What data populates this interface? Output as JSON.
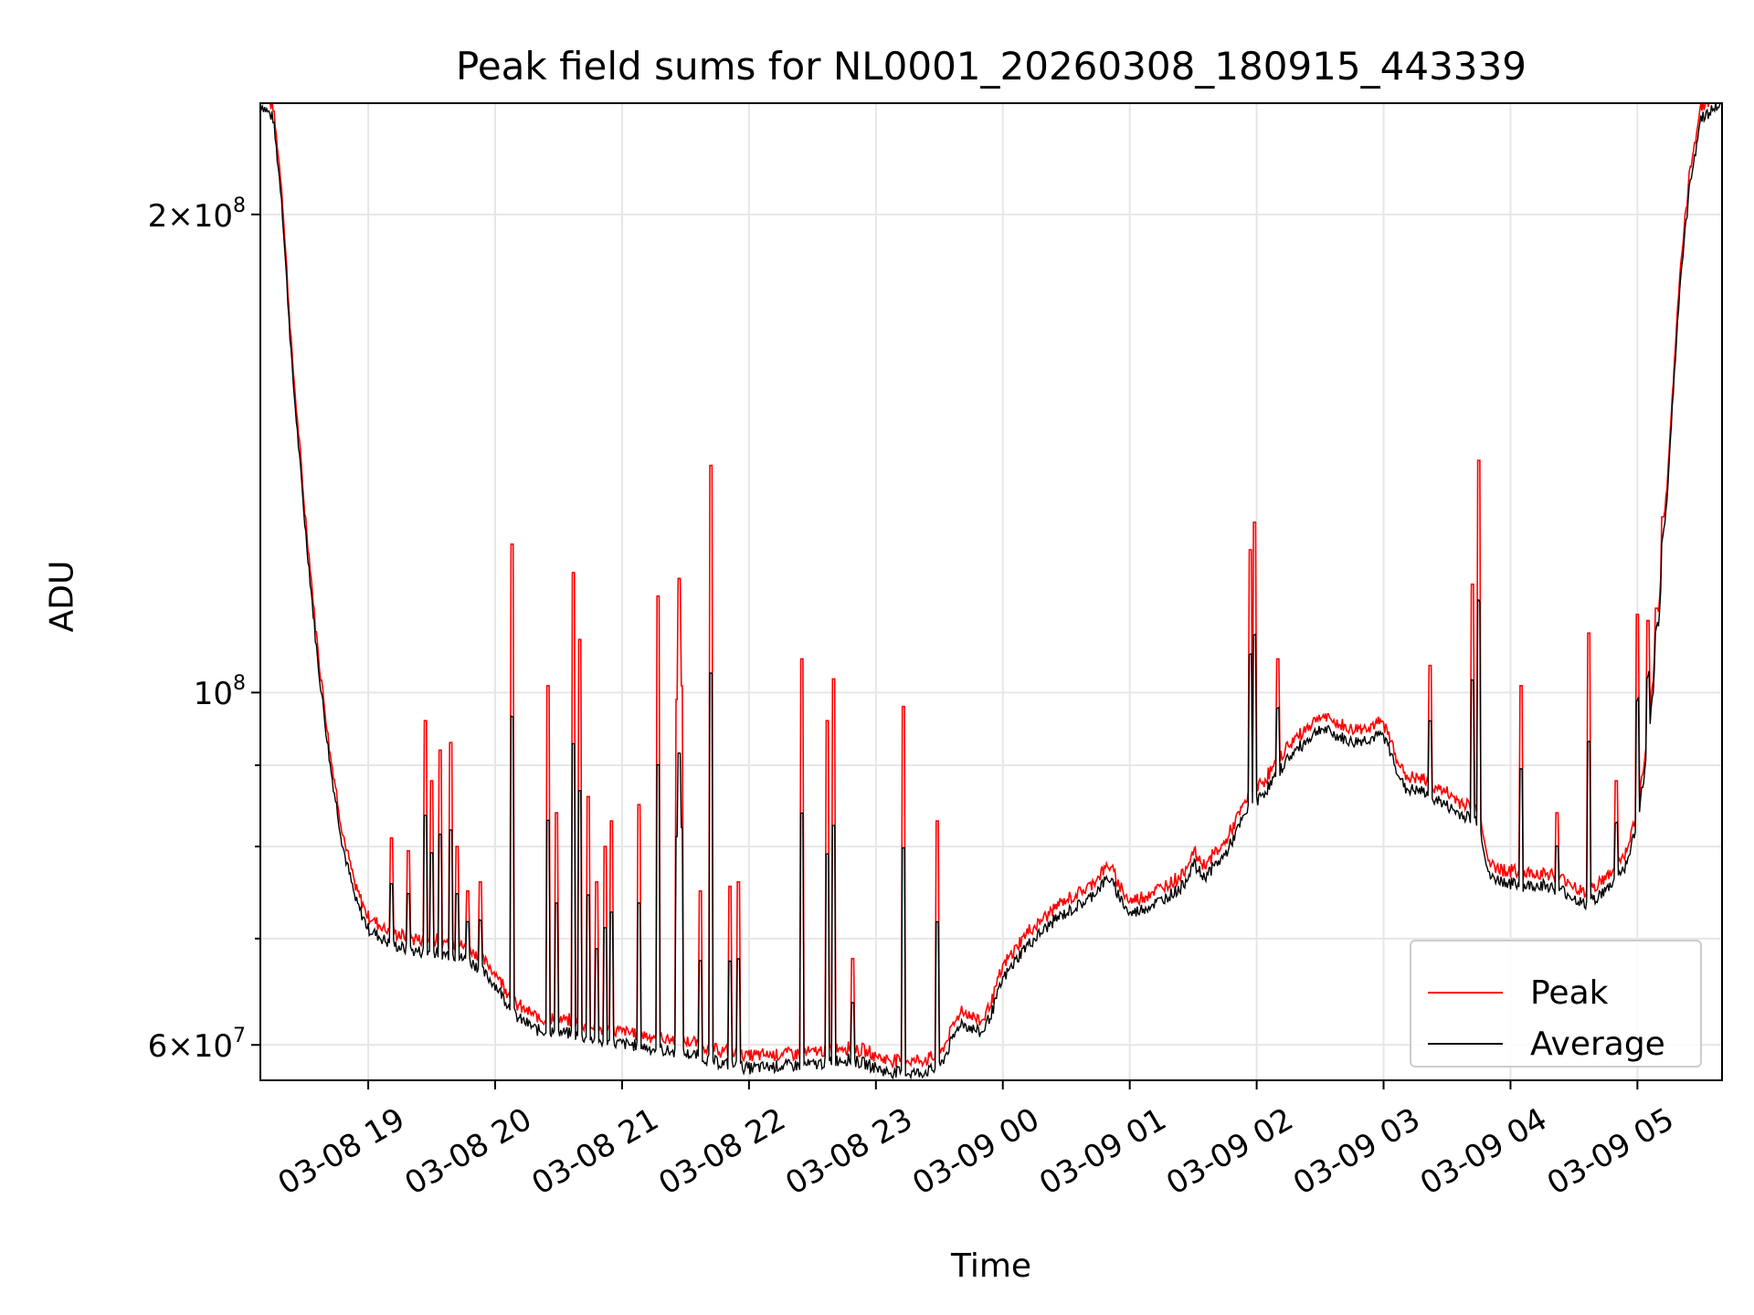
{
  "chart_data": {
    "type": "line",
    "title": "Peak field sums for NL0001_20260308_180915_443339",
    "xlabel": "Time",
    "ylabel": "ADU",
    "yscale": "log",
    "ylim": [
      57000000,
      235000000
    ],
    "xlim": [
      "2026-03-08 18:09",
      "2026-03-09 05:40"
    ],
    "x_ticks": [
      "03-08 19",
      "03-08 20",
      "03-08 21",
      "03-08 22",
      "03-08 23",
      "03-09 00",
      "03-09 01",
      "03-09 02",
      "03-09 03",
      "03-09 04",
      "03-09 05"
    ],
    "y_ticks": [
      {
        "value": 60000000,
        "mantissa": "6",
        "exponent": "7"
      },
      {
        "value": 100000000,
        "mantissa": "",
        "exponent": "8"
      },
      {
        "value": 200000000,
        "mantissa": "2",
        "exponent": "8"
      }
    ],
    "y_minor_ticks": [
      70000000,
      80000000,
      90000000
    ],
    "grid": true,
    "legend_position": "lower-right",
    "series": [
      {
        "name": "Average",
        "color": "#000000",
        "points": [
          [
            "2026-03-08 18:09",
            235000000
          ],
          [
            "2026-03-08 18:15",
            230000000
          ],
          [
            "2026-03-08 18:19",
            205000000
          ],
          [
            "2026-03-08 18:24",
            160000000
          ],
          [
            "2026-03-08 18:30",
            128000000
          ],
          [
            "2026-03-08 18:36",
            105000000
          ],
          [
            "2026-03-08 18:42",
            90000000
          ],
          [
            "2026-03-08 18:48",
            80000000
          ],
          [
            "2026-03-08 18:54",
            74000000
          ],
          [
            "2026-03-08 19:00",
            71000000
          ],
          [
            "2026-03-08 19:10",
            69500000
          ],
          [
            "2026-03-08 19:20",
            68800000
          ],
          [
            "2026-03-08 19:30",
            68600000
          ],
          [
            "2026-03-08 19:40",
            68400000
          ],
          [
            "2026-03-08 19:50",
            67500000
          ],
          [
            "2026-03-08 20:00",
            65500000
          ],
          [
            "2026-03-08 20:10",
            62500000
          ],
          [
            "2026-03-08 20:20",
            61300000
          ],
          [
            "2026-03-08 20:35",
            61000000
          ],
          [
            "2026-03-08 20:50",
            60300000
          ],
          [
            "2026-03-08 21:05",
            60000000
          ],
          [
            "2026-03-08 21:20",
            59500000
          ],
          [
            "2026-03-08 21:35",
            59100000
          ],
          [
            "2026-03-08 21:45",
            58500000
          ],
          [
            "2026-03-08 22:00",
            58000000
          ],
          [
            "2026-03-08 22:15",
            58200000
          ],
          [
            "2026-03-08 22:30",
            58300000
          ],
          [
            "2026-03-08 22:45",
            58800000
          ],
          [
            "2026-03-08 22:55",
            58400000
          ],
          [
            "2026-03-08 23:05",
            57700000
          ],
          [
            "2026-03-08 23:20",
            57600000
          ],
          [
            "2026-03-08 23:30",
            58000000
          ],
          [
            "2026-03-08 23:40",
            62000000
          ],
          [
            "2026-03-08 23:50",
            61000000
          ],
          [
            "2026-03-08 23:55",
            63000000
          ],
          [
            "2026-03-09 00:00",
            66000000
          ],
          [
            "2026-03-09 00:10",
            69000000
          ],
          [
            "2026-03-09 00:25",
            72000000
          ],
          [
            "2026-03-09 00:40",
            74000000
          ],
          [
            "2026-03-09 00:50",
            76500000
          ],
          [
            "2026-03-09 01:00",
            72500000
          ],
          [
            "2026-03-09 01:15",
            74000000
          ],
          [
            "2026-03-09 01:25",
            75500000
          ],
          [
            "2026-03-09 01:30",
            78000000
          ],
          [
            "2026-03-09 01:35",
            76500000
          ],
          [
            "2026-03-09 01:45",
            79000000
          ],
          [
            "2026-03-09 01:55",
            84000000
          ],
          [
            "2026-03-09 02:05",
            87000000
          ],
          [
            "2026-03-09 02:15",
            91000000
          ],
          [
            "2026-03-09 02:30",
            95000000
          ],
          [
            "2026-03-09 02:45",
            93000000
          ],
          [
            "2026-03-09 03:00",
            94000000
          ],
          [
            "2026-03-09 03:10",
            87000000
          ],
          [
            "2026-03-09 03:20",
            86500000
          ],
          [
            "2026-03-09 03:35",
            84000000
          ],
          [
            "2026-03-09 03:45",
            83000000
          ],
          [
            "2026-03-09 03:50",
            76500000
          ],
          [
            "2026-03-09 04:05",
            75500000
          ],
          [
            "2026-03-09 04:15",
            75700000
          ],
          [
            "2026-03-09 04:25",
            75000000
          ],
          [
            "2026-03-09 04:35",
            73500000
          ],
          [
            "2026-03-09 04:45",
            75000000
          ],
          [
            "2026-03-09 04:55",
            78000000
          ],
          [
            "2026-03-09 05:00",
            83000000
          ],
          [
            "2026-03-09 05:05",
            92000000
          ],
          [
            "2026-03-09 05:10",
            110000000
          ],
          [
            "2026-03-09 05:15",
            140000000
          ],
          [
            "2026-03-09 05:20",
            180000000
          ],
          [
            "2026-03-09 05:25",
            210000000
          ],
          [
            "2026-03-09 05:30",
            230000000
          ],
          [
            "2026-03-09 05:40",
            235000000
          ]
        ]
      },
      {
        "name": "Peak",
        "color": "#ff0000",
        "offset_ratio": 1.015,
        "spikes": [
          [
            "2026-03-08 19:11",
            81000000
          ],
          [
            "2026-03-08 19:19",
            79500000
          ],
          [
            "2026-03-08 19:27",
            96000000
          ],
          [
            "2026-03-08 19:30",
            88000000
          ],
          [
            "2026-03-08 19:34",
            92000000
          ],
          [
            "2026-03-08 19:39",
            93000000
          ],
          [
            "2026-03-08 19:42",
            80000000
          ],
          [
            "2026-03-08 19:47",
            75000000
          ],
          [
            "2026-03-08 19:53",
            76000000
          ],
          [
            "2026-03-08 20:08",
            124000000
          ],
          [
            "2026-03-08 20:25",
            101000000
          ],
          [
            "2026-03-08 20:29",
            84000000
          ],
          [
            "2026-03-08 20:37",
            119000000
          ],
          [
            "2026-03-08 20:40",
            108000000
          ],
          [
            "2026-03-08 20:44",
            86000000
          ],
          [
            "2026-03-08 20:48",
            76000000
          ],
          [
            "2026-03-08 20:52",
            80000000
          ],
          [
            "2026-03-08 20:55",
            83000000
          ],
          [
            "2026-03-08 21:08",
            85000000
          ],
          [
            "2026-03-08 21:17",
            115000000
          ],
          [
            "2026-03-08 21:26",
            99000000
          ],
          [
            "2026-03-08 21:27",
            118000000
          ],
          [
            "2026-03-08 21:28",
            101000000
          ],
          [
            "2026-03-08 21:37",
            75000000
          ],
          [
            "2026-03-08 21:42",
            139000000
          ],
          [
            "2026-03-08 21:51",
            75500000
          ],
          [
            "2026-03-08 21:55",
            76000000
          ],
          [
            "2026-03-08 22:25",
            105000000
          ],
          [
            "2026-03-08 22:37",
            96000000
          ],
          [
            "2026-03-08 22:40",
            102000000
          ],
          [
            "2026-03-08 22:49",
            68000000
          ],
          [
            "2026-03-08 23:13",
            98000000
          ],
          [
            "2026-03-08 23:29",
            83000000
          ],
          [
            "2026-03-09 01:57",
            123000000
          ],
          [
            "2026-03-09 01:59",
            128000000
          ],
          [
            "2026-03-09 02:10",
            105000000
          ],
          [
            "2026-03-09 03:22",
            104000000
          ],
          [
            "2026-03-09 03:42",
            117000000
          ],
          [
            "2026-03-09 03:45",
            140000000
          ],
          [
            "2026-03-09 04:05",
            101000000
          ],
          [
            "2026-03-09 04:22",
            84000000
          ],
          [
            "2026-03-09 04:37",
            109000000
          ],
          [
            "2026-03-09 04:50",
            88000000
          ],
          [
            "2026-03-09 05:00",
            112000000
          ],
          [
            "2026-03-09 05:05",
            111000000
          ],
          [
            "2026-03-09 05:09",
            113000000
          ],
          [
            "2026-03-09 05:12",
            129000000
          ]
        ]
      }
    ]
  }
}
